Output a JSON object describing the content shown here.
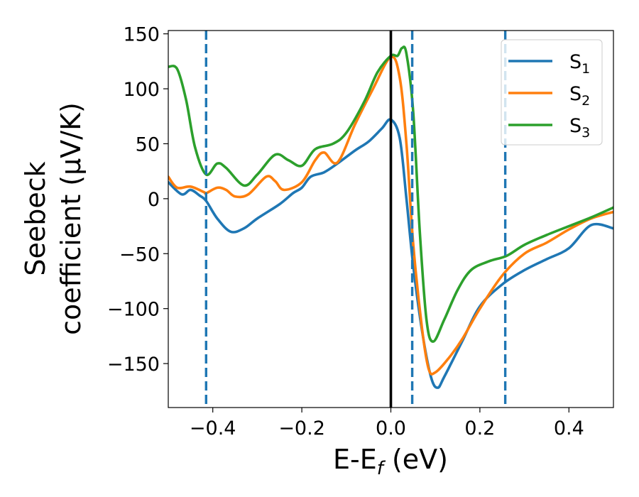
{
  "chart_data": {
    "type": "line",
    "title": "",
    "xlabel": {
      "main": "E-E",
      "sub": "f",
      "unit": " (eV)"
    },
    "ylabel": {
      "line1": "Seebeck",
      "line2": "coefficient  (μV/K)"
    },
    "xlim": [
      -0.5,
      0.5
    ],
    "ylim": [
      -190,
      153
    ],
    "xticks": [
      -0.4,
      -0.2,
      0.0,
      0.2,
      0.4
    ],
    "xtick_labels": [
      "−0.4",
      "−0.2",
      "0.0",
      "0.2",
      "0.4"
    ],
    "yticks": [
      -150,
      -100,
      -50,
      0,
      50,
      100,
      150
    ],
    "ytick_labels": [
      "−150",
      "−100",
      "−50",
      "0",
      "50",
      "100",
      "150"
    ],
    "grid": false,
    "legend_position": "top-right",
    "vertical_lines": [
      {
        "x": 0.0,
        "style": "solid",
        "color": "#000000"
      },
      {
        "x": -0.415,
        "style": "dashed",
        "color": "#1f77b4"
      },
      {
        "x": 0.048,
        "style": "dashed",
        "color": "#1f77b4"
      },
      {
        "x": 0.257,
        "style": "dashed",
        "color": "#1f77b4"
      }
    ],
    "series": [
      {
        "name": "S",
        "sub": "1",
        "color": "#1f77b4",
        "points": [
          [
            -0.5,
            15
          ],
          [
            -0.47,
            4
          ],
          [
            -0.45,
            8
          ],
          [
            -0.43,
            3
          ],
          [
            -0.415,
            -2
          ],
          [
            -0.39,
            -18
          ],
          [
            -0.36,
            -30
          ],
          [
            -0.33,
            -27
          ],
          [
            -0.3,
            -18
          ],
          [
            -0.25,
            -5
          ],
          [
            -0.22,
            5
          ],
          [
            -0.2,
            10
          ],
          [
            -0.18,
            20
          ],
          [
            -0.15,
            24
          ],
          [
            -0.12,
            32
          ],
          [
            -0.08,
            44
          ],
          [
            -0.05,
            52
          ],
          [
            -0.02,
            64
          ],
          [
            0.0,
            72
          ],
          [
            0.02,
            55
          ],
          [
            0.035,
            0
          ],
          [
            0.05,
            -60
          ],
          [
            0.07,
            -120
          ],
          [
            0.09,
            -162
          ],
          [
            0.105,
            -172
          ],
          [
            0.12,
            -162
          ],
          [
            0.16,
            -130
          ],
          [
            0.2,
            -98
          ],
          [
            0.25,
            -78
          ],
          [
            0.3,
            -65
          ],
          [
            0.35,
            -55
          ],
          [
            0.4,
            -45
          ],
          [
            0.45,
            -24
          ],
          [
            0.5,
            -27
          ]
        ]
      },
      {
        "name": "S",
        "sub": "2",
        "color": "#ff7f0e",
        "points": [
          [
            -0.5,
            20
          ],
          [
            -0.48,
            10
          ],
          [
            -0.45,
            11
          ],
          [
            -0.42,
            6
          ],
          [
            -0.415,
            5
          ],
          [
            -0.39,
            10
          ],
          [
            -0.37,
            8
          ],
          [
            -0.35,
            2
          ],
          [
            -0.32,
            4
          ],
          [
            -0.28,
            20
          ],
          [
            -0.26,
            16
          ],
          [
            -0.24,
            8
          ],
          [
            -0.2,
            15
          ],
          [
            -0.17,
            35
          ],
          [
            -0.15,
            42
          ],
          [
            -0.12,
            33
          ],
          [
            -0.08,
            68
          ],
          [
            -0.04,
            100
          ],
          [
            0.0,
            129
          ],
          [
            0.02,
            110
          ],
          [
            0.035,
            50
          ],
          [
            0.05,
            -40
          ],
          [
            0.07,
            -118
          ],
          [
            0.085,
            -155
          ],
          [
            0.1,
            -158
          ],
          [
            0.13,
            -145
          ],
          [
            0.16,
            -128
          ],
          [
            0.2,
            -100
          ],
          [
            0.25,
            -70
          ],
          [
            0.3,
            -50
          ],
          [
            0.35,
            -40
          ],
          [
            0.4,
            -28
          ],
          [
            0.45,
            -18
          ],
          [
            0.5,
            -12
          ]
        ]
      },
      {
        "name": "S",
        "sub": "3",
        "color": "#2ca02c",
        "points": [
          [
            -0.5,
            120
          ],
          [
            -0.48,
            118
          ],
          [
            -0.46,
            90
          ],
          [
            -0.44,
            47
          ],
          [
            -0.415,
            22
          ],
          [
            -0.39,
            32
          ],
          [
            -0.37,
            28
          ],
          [
            -0.33,
            12
          ],
          [
            -0.3,
            22
          ],
          [
            -0.26,
            40
          ],
          [
            -0.23,
            35
          ],
          [
            -0.2,
            30
          ],
          [
            -0.17,
            45
          ],
          [
            -0.13,
            50
          ],
          [
            -0.1,
            60
          ],
          [
            -0.06,
            88
          ],
          [
            -0.03,
            115
          ],
          [
            0.0,
            130
          ],
          [
            0.015,
            130
          ],
          [
            0.025,
            137
          ],
          [
            0.035,
            132
          ],
          [
            0.05,
            80
          ],
          [
            0.065,
            -30
          ],
          [
            0.08,
            -110
          ],
          [
            0.095,
            -130
          ],
          [
            0.12,
            -110
          ],
          [
            0.15,
            -83
          ],
          [
            0.18,
            -65
          ],
          [
            0.22,
            -57
          ],
          [
            0.26,
            -52
          ],
          [
            0.3,
            -42
          ],
          [
            0.35,
            -33
          ],
          [
            0.4,
            -25
          ],
          [
            0.45,
            -17
          ],
          [
            0.5,
            -8
          ]
        ]
      }
    ]
  }
}
